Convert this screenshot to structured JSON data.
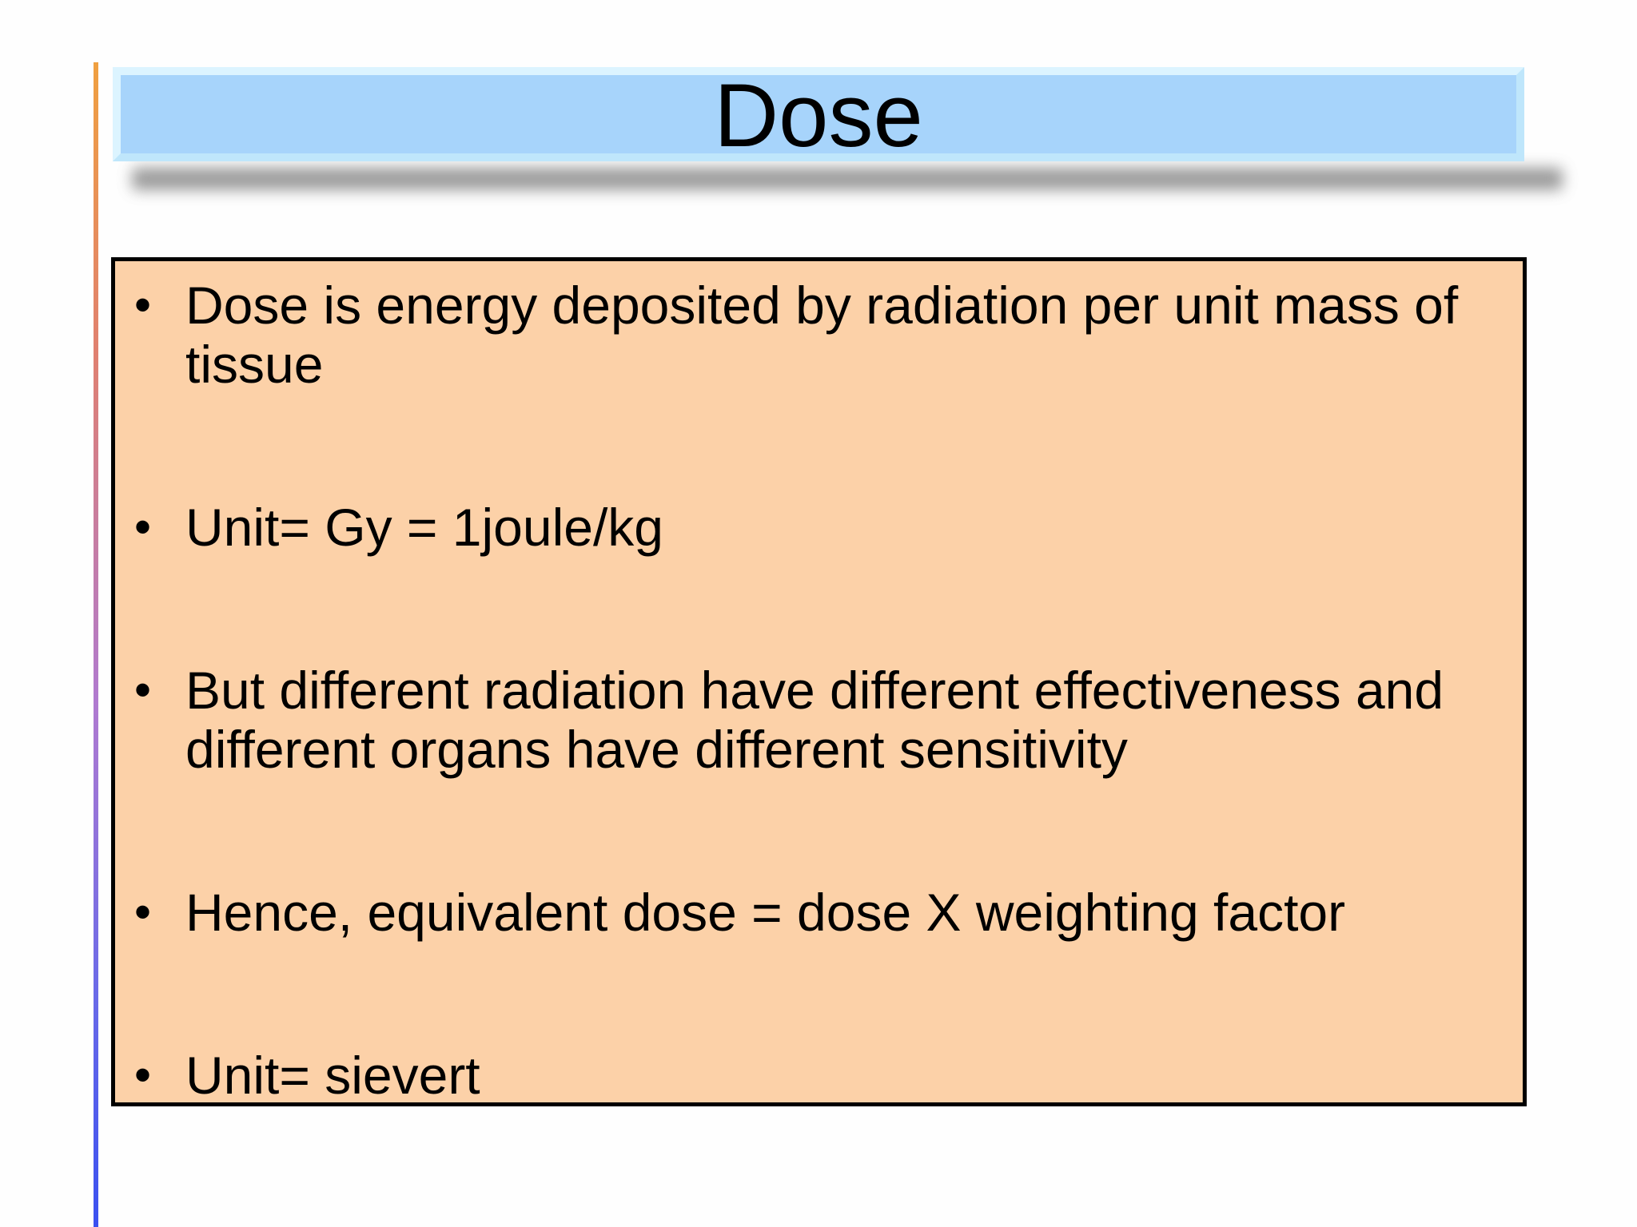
{
  "slide": {
    "title": "Dose",
    "bullets": [
      "Dose is energy deposited by radiation per unit mass of tissue",
      "Unit= Gy = 1joule/kg",
      "But different radiation have different effectiveness and different organs have different sensitivity",
      "Hence, equivalent dose = dose X weighting factor",
      "Unit= sievert"
    ],
    "bullet_symbol": "•"
  },
  "colors": {
    "title_banner": "#a7d4fb",
    "content_box": "#fcd1a8",
    "left_rule_top": "#f0a040",
    "left_rule_bottom": "#3a50f0"
  }
}
